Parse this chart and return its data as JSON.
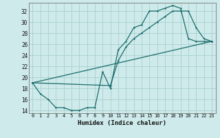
{
  "title": "",
  "xlabel": "Humidex (Indice chaleur)",
  "ylabel": "",
  "background_color": "#ceeaea",
  "grid_color": "#aacfcf",
  "line_color": "#1a6b6b",
  "xlim": [
    -0.5,
    23.5
  ],
  "ylim": [
    13.5,
    33.5
  ],
  "xticks": [
    0,
    1,
    2,
    3,
    4,
    5,
    6,
    7,
    8,
    9,
    10,
    11,
    12,
    13,
    14,
    15,
    16,
    17,
    18,
    19,
    20,
    21,
    22,
    23
  ],
  "yticks": [
    14,
    16,
    18,
    20,
    22,
    24,
    26,
    28,
    30,
    32
  ],
  "line1_x": [
    0,
    1,
    2,
    3,
    4,
    5,
    6,
    7,
    8,
    9,
    10,
    11,
    12,
    13,
    14,
    15,
    16,
    17,
    18,
    19,
    20,
    21,
    22,
    23
  ],
  "line1_y": [
    19,
    17,
    16,
    14.5,
    14.5,
    14,
    14,
    14.5,
    14.5,
    21,
    18,
    25,
    26.5,
    29,
    29.5,
    32,
    32,
    32.5,
    33,
    32.5,
    27,
    26.5,
    26.5,
    26.5
  ],
  "line2_x": [
    0,
    10,
    11,
    12,
    13,
    14,
    15,
    16,
    17,
    18,
    19,
    20,
    21,
    22,
    23
  ],
  "line2_y": [
    19,
    18.5,
    23,
    25.5,
    27,
    28,
    29,
    30,
    31,
    32,
    32,
    32,
    29,
    27,
    26.5
  ],
  "line3_x": [
    0,
    23
  ],
  "line3_y": [
    19,
    26.5
  ]
}
